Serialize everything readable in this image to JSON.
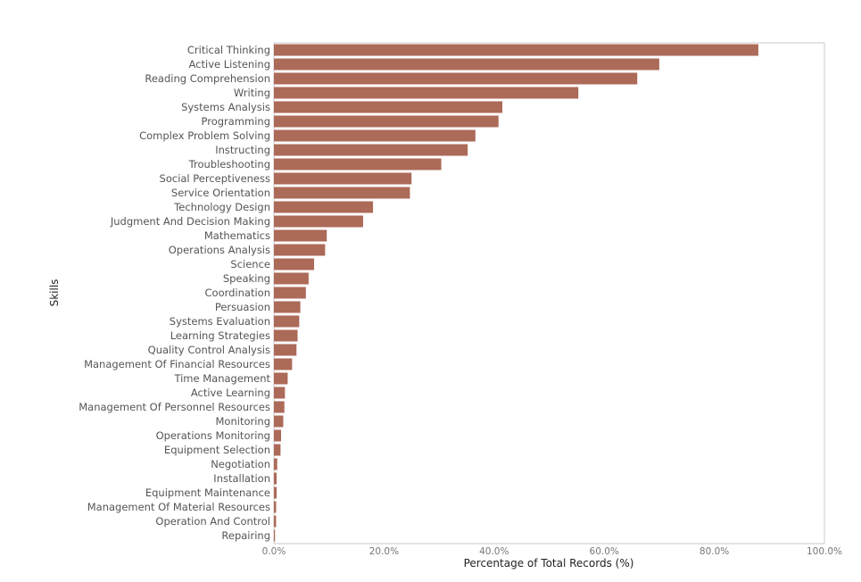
{
  "chart_data": {
    "type": "bar",
    "orientation": "horizontal",
    "xlabel": "Percentage of Total Records (%)",
    "ylabel": "Skills",
    "xlim": [
      0,
      100
    ],
    "x_ticks": [
      "0.0%",
      "20.0%",
      "40.0%",
      "60.0%",
      "80.0%",
      "100.0%"
    ],
    "x_tick_values": [
      0,
      20,
      40,
      60,
      80,
      100
    ],
    "bar_color": "#ac6a58",
    "grid": false,
    "categories": [
      "Critical Thinking",
      "Active Listening",
      "Reading Comprehension",
      "Writing",
      "Systems Analysis",
      "Programming",
      "Complex Problem Solving",
      "Instructing",
      "Troubleshooting",
      "Social Perceptiveness",
      "Service Orientation",
      "Technology Design",
      "Judgment And Decision Making",
      "Mathematics",
      "Operations Analysis",
      "Science",
      "Speaking",
      "Coordination",
      "Persuasion",
      "Systems Evaluation",
      "Learning Strategies",
      "Quality Control Analysis",
      "Management Of Financial Resources",
      "Time Management",
      "Active Learning",
      "Management Of Personnel Resources",
      "Monitoring",
      "Operations Monitoring",
      "Equipment Selection",
      "Negotiation",
      "Installation",
      "Equipment Maintenance",
      "Management Of Material Resources",
      "Operation And Control",
      "Repairing"
    ],
    "values": [
      88.0,
      70.0,
      66.0,
      55.3,
      41.5,
      40.8,
      36.6,
      35.2,
      30.4,
      25.0,
      24.7,
      18.0,
      16.2,
      9.6,
      9.3,
      7.3,
      6.3,
      5.8,
      4.8,
      4.6,
      4.3,
      4.1,
      3.3,
      2.5,
      2.0,
      1.9,
      1.7,
      1.3,
      1.2,
      0.6,
      0.5,
      0.5,
      0.4,
      0.4,
      0.2
    ]
  }
}
